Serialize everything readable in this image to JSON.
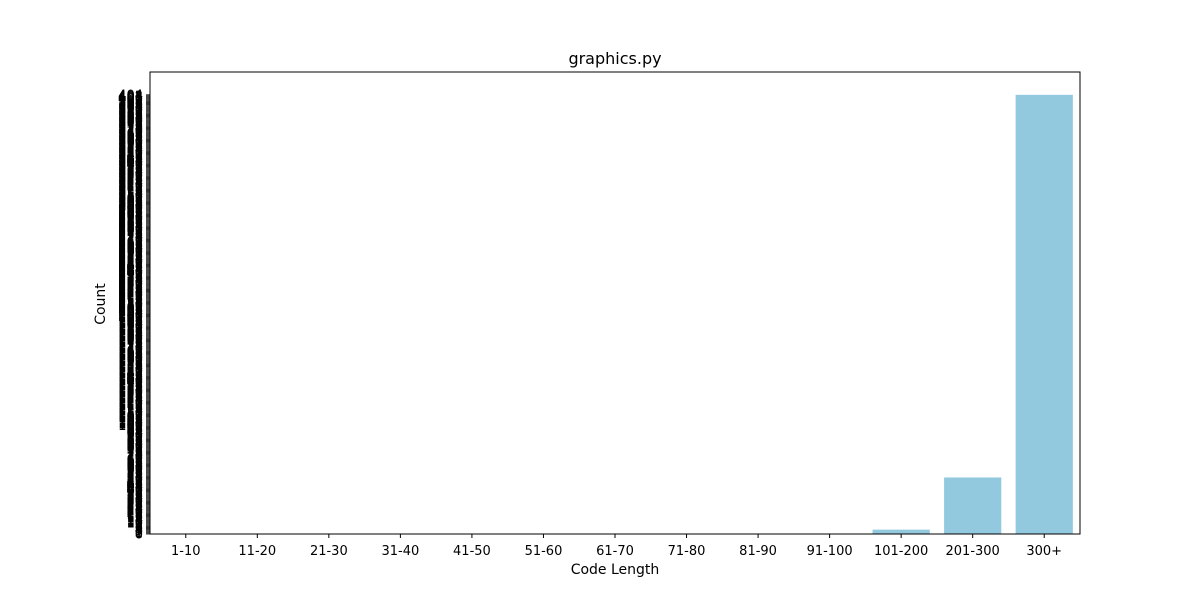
{
  "chart_data": {
    "type": "bar",
    "title": "graphics.py",
    "xlabel": "Code Length",
    "ylabel": "Count",
    "categories": [
      "1-10",
      "11-20",
      "21-30",
      "31-40",
      "41-50",
      "51-60",
      "61-70",
      "71-80",
      "81-90",
      "91-100",
      "101-200",
      "201-300",
      "300+"
    ],
    "values": [
      0,
      0,
      0,
      0,
      0,
      0,
      0,
      0,
      0,
      0,
      4,
      52,
      404
    ],
    "ylim": [
      0,
      425
    ],
    "legend": "none",
    "grid": false,
    "colors": {
      "bar": "#92c9de"
    }
  }
}
